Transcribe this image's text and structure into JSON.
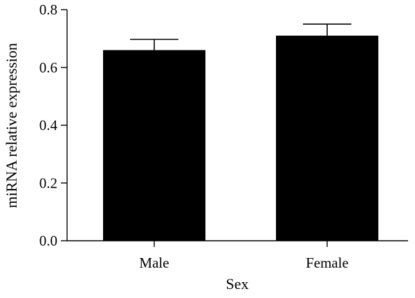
{
  "chart_data": {
    "type": "bar",
    "title": "",
    "xlabel": "Sex",
    "ylabel": "miRNA relative expression",
    "categories": [
      "Male",
      "Female"
    ],
    "values": [
      0.66,
      0.71
    ],
    "error_bars": [
      0.037,
      0.04
    ],
    "ylim": [
      0.0,
      0.8
    ],
    "yticks": [
      0.0,
      0.2,
      0.4,
      0.6,
      0.8
    ],
    "ytick_labels": [
      "0.0",
      "0.2",
      "0.4",
      "0.6",
      "0.8"
    ],
    "grid": false,
    "legend": "none",
    "bar_color": "#000000"
  }
}
